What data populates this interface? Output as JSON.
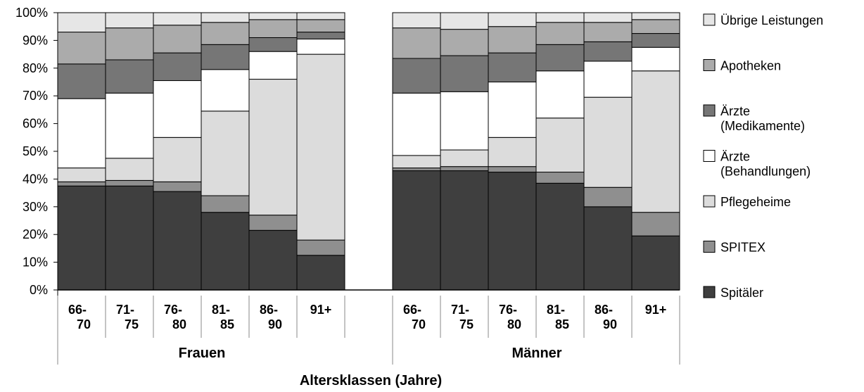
{
  "chart_data": {
    "type": "bar",
    "stacked": true,
    "percent": true,
    "xlabel": "Altersklassen (Jahre)",
    "ylim": [
      0,
      100
    ],
    "yticks": [
      "0%",
      "10%",
      "20%",
      "30%",
      "40%",
      "50%",
      "60%",
      "70%",
      "80%",
      "90%",
      "100%"
    ],
    "grid": false,
    "legend_position": "right",
    "groups": [
      {
        "name": "Frauen",
        "categories": [
          [
            "66-",
            "70"
          ],
          [
            "71-",
            "75"
          ],
          [
            "76-",
            "80"
          ],
          [
            "81-",
            "85"
          ],
          [
            "86-",
            "90"
          ],
          [
            "91+"
          ]
        ]
      },
      {
        "name": "Männer",
        "categories": [
          [
            "66-",
            "70"
          ],
          [
            "71-",
            "75"
          ],
          [
            "76-",
            "80"
          ],
          [
            "81-",
            "85"
          ],
          [
            "86-",
            "90"
          ],
          [
            "91+"
          ]
        ]
      }
    ],
    "series": [
      {
        "name": "Spitäler",
        "color": "#3f3f3f",
        "values": [
          37.5,
          37.5,
          35.5,
          28,
          21.5,
          12.5,
          43,
          43,
          42.5,
          38.5,
          30,
          19.5
        ]
      },
      {
        "name": "SPITEX",
        "color": "#8f8f8f",
        "values": [
          1.5,
          2,
          3.5,
          6,
          5.5,
          5.5,
          1,
          1.5,
          2,
          4,
          7,
          8.5
        ]
      },
      {
        "name": "Pflegeheime",
        "color": "#dcdcdc",
        "values": [
          5,
          8,
          16,
          30.5,
          49,
          67,
          4.5,
          6,
          10.5,
          19.5,
          32.5,
          51
        ]
      },
      {
        "name": "Ärzte (Behandlungen)",
        "color": "#ffffff",
        "values": [
          25,
          23.5,
          20.5,
          15,
          10,
          5.5,
          22.5,
          21,
          20,
          17,
          13,
          8.5
        ]
      },
      {
        "name": "Ärzte (Medikamente)",
        "color": "#767676",
        "values": [
          12.5,
          12,
          10,
          9,
          5,
          2.5,
          12.5,
          13,
          10.5,
          9.5,
          7,
          5
        ]
      },
      {
        "name": "Apotheken",
        "color": "#ababab",
        "values": [
          11.5,
          11.5,
          10,
          8,
          6.5,
          4.5,
          11,
          9.5,
          9.5,
          8,
          7,
          5
        ]
      },
      {
        "name": "Übrige Leistungen",
        "color": "#e6e6e6",
        "values": [
          7,
          5.5,
          4.5,
          3.5,
          2.5,
          2.5,
          5.5,
          6,
          5,
          3.5,
          3.5,
          2.5
        ]
      }
    ],
    "legend": [
      {
        "line1": "Übrige Leistungen",
        "line2": "",
        "color": "#e6e6e6"
      },
      {
        "line1": "Apotheken",
        "line2": "",
        "color": "#ababab"
      },
      {
        "line1": "Ärzte",
        "line2": "(Medikamente)",
        "color": "#767676"
      },
      {
        "line1": "Ärzte",
        "line2": "(Behandlungen)",
        "color": "#ffffff"
      },
      {
        "line1": "Pflegeheime",
        "line2": "",
        "color": "#dcdcdc"
      },
      {
        "line1": "SPITEX",
        "line2": "",
        "color": "#8f8f8f"
      },
      {
        "line1": "Spitäler",
        "line2": "",
        "color": "#3f3f3f"
      }
    ]
  }
}
